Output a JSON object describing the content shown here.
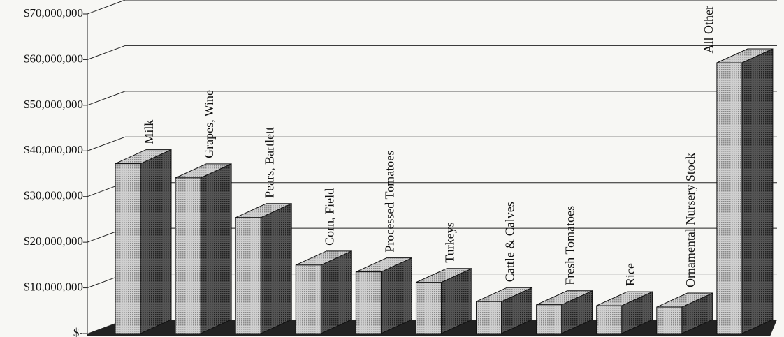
{
  "chart_data": {
    "type": "bar3d",
    "categories": [
      "Milk",
      "Grapes, Wine",
      "Pears, Bartlett",
      "Corn, Field",
      "Processed Tomatoes",
      "Turkeys",
      "Cattle & Calves",
      "Fresh Tomatoes",
      "Rice",
      "Ornamental Nursery Stock",
      "All Other"
    ],
    "values": [
      37200000,
      34100000,
      25400000,
      15000000,
      13500000,
      11200000,
      7000000,
      6300000,
      6100000,
      5800000,
      59300000
    ],
    "color": "#bdbdbd",
    "side_color": "#4a4a4a",
    "ylim": [
      0,
      70000000
    ],
    "yticks": [
      {
        "value": 0,
        "label": "$-"
      },
      {
        "value": 10000000,
        "label": "$10,000,000"
      },
      {
        "value": 20000000,
        "label": "$20,000,000"
      },
      {
        "value": 30000000,
        "label": "$30,000,000"
      },
      {
        "value": 40000000,
        "label": "$40,000,000"
      },
      {
        "value": 50000000,
        "label": "$50,000,000"
      },
      {
        "value": 60000000,
        "label": "$60,000,000"
      },
      {
        "value": 70000000,
        "label": "$70,000,000"
      }
    ],
    "grid": true
  }
}
